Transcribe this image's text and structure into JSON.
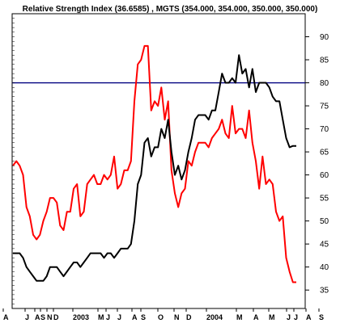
{
  "chart_data": {
    "type": "line",
    "title": "Relative Strength Index (36.6585) , MGTS (354.000, 354.000, 350.000, 350.000)",
    "ylim": [
      31,
      95
    ],
    "yticks": [
      35,
      40,
      45,
      50,
      55,
      60,
      65,
      70,
      75,
      80,
      85,
      90
    ],
    "xtick_labels": [
      "A",
      "J",
      "A",
      "S",
      "N",
      "D",
      "2003",
      "M",
      "J",
      "J",
      "A",
      "S",
      "O",
      "N",
      "D",
      "2004",
      "M",
      "A",
      "M",
      "J",
      "J",
      "A",
      "S"
    ],
    "reference_line": {
      "value": 80,
      "color": "#000080"
    },
    "grid": false,
    "series": [
      {
        "color": "#ff0000",
        "values": [
          62,
          63,
          62,
          60,
          53,
          51,
          47,
          46,
          47,
          50,
          52,
          55,
          55,
          54,
          49,
          48,
          52,
          52,
          57,
          58,
          51,
          52,
          58,
          59,
          60,
          58,
          58,
          60,
          59,
          60,
          64,
          57,
          58,
          61,
          61,
          63,
          76,
          84,
          85,
          88,
          88,
          74,
          76,
          75,
          79,
          72,
          76,
          61,
          56,
          53,
          56,
          57,
          63,
          62,
          65,
          67,
          67,
          67,
          66,
          68,
          69,
          70,
          72,
          69,
          68,
          75,
          69,
          70,
          70,
          68,
          74,
          67,
          63,
          57,
          64,
          58,
          59,
          58,
          52,
          50,
          51,
          42,
          39,
          36.7,
          36.7
        ]
      },
      {
        "color": "#000000",
        "values": [
          43,
          43,
          43,
          42,
          40,
          39,
          38,
          37,
          37,
          37,
          38,
          40,
          40,
          40,
          39,
          38,
          39,
          40,
          41,
          41,
          40,
          41,
          42,
          43,
          43,
          43,
          43,
          42,
          43,
          43,
          42,
          43,
          44,
          44,
          44,
          45,
          50,
          58,
          60,
          67,
          68,
          64,
          66,
          66,
          70,
          68,
          72,
          65,
          60,
          62,
          59,
          61,
          65,
          68,
          72,
          73,
          73,
          73,
          72,
          74,
          74,
          78,
          82,
          80,
          80,
          81,
          80,
          86,
          82,
          83,
          79,
          83,
          78,
          80,
          80,
          80,
          79,
          77,
          76,
          76,
          72,
          68,
          66,
          66.3,
          66.3
        ]
      }
    ]
  }
}
